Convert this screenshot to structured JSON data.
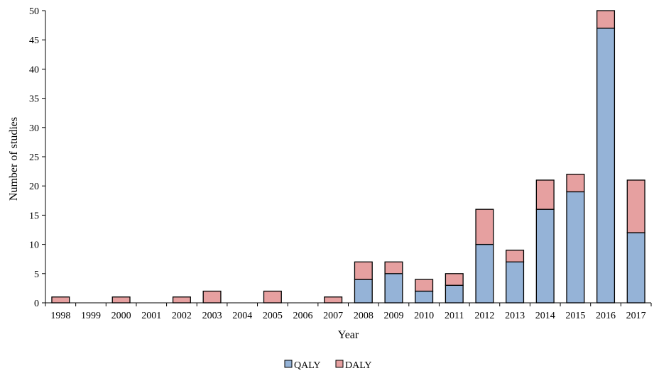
{
  "chart_data": {
    "type": "bar",
    "stacked": true,
    "title": "",
    "xlabel": "Year",
    "ylabel": "Number  of studies",
    "ylim": [
      0,
      50
    ],
    "yticks": [
      0,
      5,
      10,
      15,
      20,
      25,
      30,
      35,
      40,
      45,
      50
    ],
    "grid": false,
    "legend_position": "bottom-center",
    "categories": [
      "1998",
      "1999",
      "2000",
      "2001",
      "2002",
      "2003",
      "2004",
      "2005",
      "2006",
      "2007",
      "2008",
      "2009",
      "2010",
      "2011",
      "2012",
      "2013",
      "2014",
      "2015",
      "2016",
      "2017"
    ],
    "series": [
      {
        "name": "QALY",
        "color": "#95b3d7",
        "values": [
          0,
          0,
          0,
          0,
          0,
          0,
          0,
          0,
          0,
          0,
          4,
          5,
          2,
          3,
          10,
          7,
          16,
          19,
          47,
          12
        ]
      },
      {
        "name": "DALY",
        "color": "#e6a0a0",
        "values": [
          1,
          0,
          1,
          0,
          1,
          2,
          0,
          2,
          0,
          1,
          3,
          2,
          2,
          2,
          6,
          2,
          5,
          3,
          3,
          9
        ]
      }
    ]
  }
}
